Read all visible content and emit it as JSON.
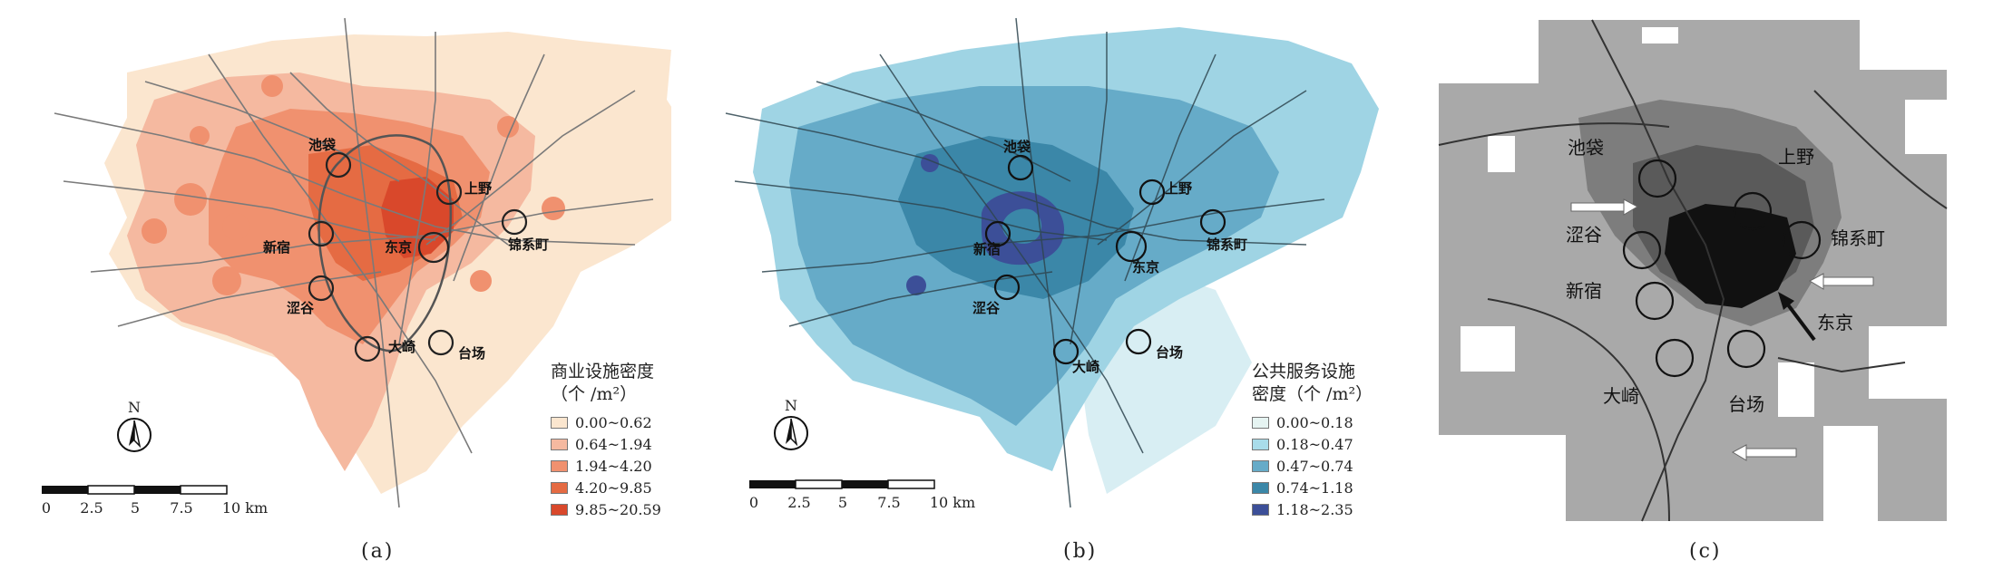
{
  "panels": [
    {
      "caption": "(a)",
      "fills": [
        "#fbe6cf",
        "#f5b9a0",
        "#f0916f",
        "#e56b43",
        "#d9482b"
      ],
      "legend": {
        "title_lines": [
          "商业设施密度",
          "（个 /m²）"
        ],
        "items": [
          {
            "label": "0.00~0.62",
            "color": "#fbe6cf"
          },
          {
            "label": "0.64~1.94",
            "color": "#f5b9a0"
          },
          {
            "label": "1.94~4.20",
            "color": "#f0916f"
          },
          {
            "label": "4.20~9.85",
            "color": "#e56b43"
          },
          {
            "label": "9.85~20.59",
            "color": "#d9482b"
          }
        ]
      },
      "places": {
        "ikebukuro": "池袋",
        "ueno": "上野",
        "shinjuku": "新宿",
        "tokyo": "东京",
        "kinshicho": "锦系町",
        "shibuya": "涩谷",
        "osaki": "大崎",
        "odaiba": "台场"
      },
      "north": "N",
      "scale": {
        "ticks": [
          "0",
          "2.5",
          "5",
          "7.5",
          "10 km"
        ]
      }
    },
    {
      "caption": "(b)",
      "fills": [
        "#d8eef3",
        "#9fd4e4",
        "#66abc8",
        "#3b87a8",
        "#3c4f98"
      ],
      "legend": {
        "title_lines": [
          "公共服务设施",
          "密度（个 /m²）"
        ],
        "items": [
          {
            "label": "0.00~0.18",
            "color": "#e6f4f2"
          },
          {
            "label": "0.18~0.47",
            "color": "#a9dcea"
          },
          {
            "label": "0.47~0.74",
            "color": "#66abc8"
          },
          {
            "label": "0.74~1.18",
            "color": "#3b87a8"
          },
          {
            "label": "1.18~2.35",
            "color": "#3c4f98"
          }
        ]
      },
      "places": {
        "ikebukuro": "池袋",
        "ueno": "上野",
        "shinjuku": "新宿",
        "tokyo": "东京",
        "kinshicho": "锦系町",
        "shibuya": "涩谷",
        "osaki": "大崎",
        "odaiba": "台场"
      },
      "north": "N",
      "scale": {
        "ticks": [
          "0",
          "2.5",
          "5",
          "7.5",
          "10 km"
        ]
      }
    },
    {
      "caption": "(c)",
      "fills": [
        "#ffffff",
        "#a9a9a9",
        "#7d7d7d",
        "#5a5a5a",
        "#111111"
      ],
      "places": {
        "ikebukuro": "池袋",
        "ueno": "上野",
        "shibuya": "涩谷",
        "kinshicho": "锦系町",
        "shinjuku": "新宿",
        "tokyo": "东京",
        "osaki": "大崎",
        "odaiba": "台场"
      }
    }
  ]
}
